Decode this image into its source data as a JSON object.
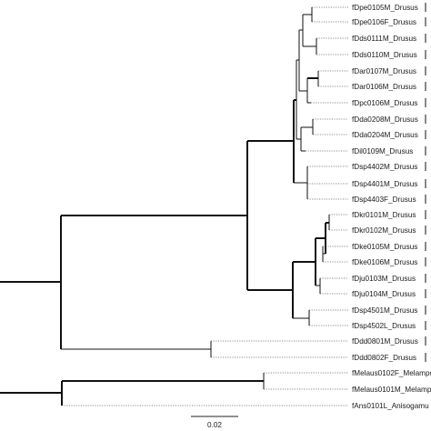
{
  "tree": {
    "leaves": [
      {
        "label": "fDpe0105M_Drusus"
      },
      {
        "label": "fDpe0106F_Drusus"
      },
      {
        "label": "fDds0111M_Drusus"
      },
      {
        "label": "fDds0110M_Drusus"
      },
      {
        "label": "fDar0107M_Drusus"
      },
      {
        "label": "fDar0106M_Drusus"
      },
      {
        "label": "fDpc0106M_Drusus"
      },
      {
        "label": "fDda0208M_Drusus"
      },
      {
        "label": "fDda0204M_Drusus"
      },
      {
        "label": "fDil0109M_Drusus"
      },
      {
        "label": "fDsp4402M_Drusus"
      },
      {
        "label": "fDsp4401M_Drusus"
      },
      {
        "label": "fDsp4403F_Drusus"
      },
      {
        "label": "fDkr0101M_Drusus"
      },
      {
        "label": "fDkr0102M_Drusus"
      },
      {
        "label": "fDke0105M_Drusus"
      },
      {
        "label": "fDke0106M_Drusus"
      },
      {
        "label": "fDju0103M_Drusus"
      },
      {
        "label": "fDju0104M_Drusus"
      },
      {
        "label": "fDsp4501M_Drusus"
      },
      {
        "label": "fDsp4502L_Drusus"
      },
      {
        "label": "fDdd0801M_Drusus"
      },
      {
        "label": "fDdd0802F_Drusus"
      },
      {
        "label": "fMelaus0102F_Melampo"
      },
      {
        "label": "fMelaus0101M_Melamp"
      },
      {
        "label": "fAns0101L_Anisogamu"
      }
    ],
    "scale_bar": {
      "label": "0.02"
    }
  }
}
